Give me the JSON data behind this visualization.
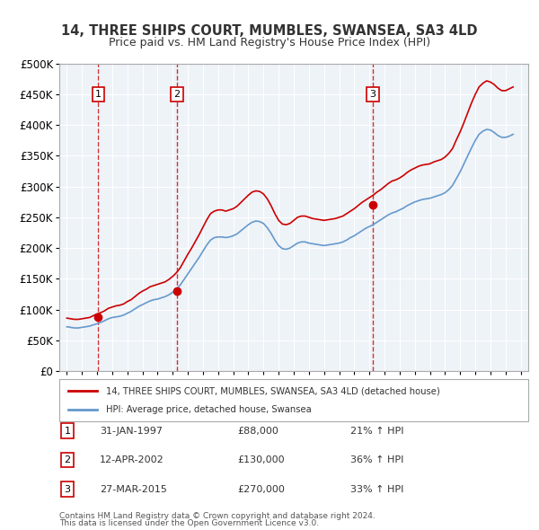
{
  "title": "14, THREE SHIPS COURT, MUMBLES, SWANSEA, SA3 4LD",
  "subtitle": "Price paid vs. HM Land Registry's House Price Index (HPI)",
  "sales": [
    {
      "label": "1",
      "date_str": "31-JAN-1997",
      "year": 1997.08,
      "price": 88000
    },
    {
      "label": "2",
      "date_str": "12-APR-2002",
      "year": 2002.28,
      "price": 130000
    },
    {
      "label": "3",
      "date_str": "27-MAR-2015",
      "year": 2015.23,
      "price": 270000
    }
  ],
  "sale_pct": [
    "21% ↑ HPI",
    "36% ↑ HPI",
    "33% ↑ HPI"
  ],
  "legend_property": "14, THREE SHIPS COURT, MUMBLES, SWANSEA, SA3 4LD (detached house)",
  "legend_hpi": "HPI: Average price, detached house, Swansea",
  "footnote1": "Contains HM Land Registry data © Crown copyright and database right 2024.",
  "footnote2": "This data is licensed under the Open Government Licence v3.0.",
  "property_color": "#cc0000",
  "hpi_color": "#6699cc",
  "vline_color": "#cc0000",
  "bg_color": "#dde8f0",
  "plot_bg": "#eef3f8",
  "ylim": [
    0,
    500000
  ],
  "xlim": [
    1994.5,
    2025.5
  ],
  "yticks": [
    0,
    50000,
    100000,
    150000,
    200000,
    250000,
    300000,
    350000,
    400000,
    450000,
    500000
  ],
  "ytick_labels": [
    "£0",
    "£50K",
    "£100K",
    "£150K",
    "£200K",
    "£250K",
    "£300K",
    "£350K",
    "£400K",
    "£450K",
    "£500K"
  ],
  "hpi_data": {
    "years": [
      1995.0,
      1995.25,
      1995.5,
      1995.75,
      1996.0,
      1996.25,
      1996.5,
      1996.75,
      1997.0,
      1997.25,
      1997.5,
      1997.75,
      1998.0,
      1998.25,
      1998.5,
      1998.75,
      1999.0,
      1999.25,
      1999.5,
      1999.75,
      2000.0,
      2000.25,
      2000.5,
      2000.75,
      2001.0,
      2001.25,
      2001.5,
      2001.75,
      2002.0,
      2002.25,
      2002.5,
      2002.75,
      2003.0,
      2003.25,
      2003.5,
      2003.75,
      2004.0,
      2004.25,
      2004.5,
      2004.75,
      2005.0,
      2005.25,
      2005.5,
      2005.75,
      2006.0,
      2006.25,
      2006.5,
      2006.75,
      2007.0,
      2007.25,
      2007.5,
      2007.75,
      2008.0,
      2008.25,
      2008.5,
      2008.75,
      2009.0,
      2009.25,
      2009.5,
      2009.75,
      2010.0,
      2010.25,
      2010.5,
      2010.75,
      2011.0,
      2011.25,
      2011.5,
      2011.75,
      2012.0,
      2012.25,
      2012.5,
      2012.75,
      2013.0,
      2013.25,
      2013.5,
      2013.75,
      2014.0,
      2014.25,
      2014.5,
      2014.75,
      2015.0,
      2015.25,
      2015.5,
      2015.75,
      2016.0,
      2016.25,
      2016.5,
      2016.75,
      2017.0,
      2017.25,
      2017.5,
      2017.75,
      2018.0,
      2018.25,
      2018.5,
      2018.75,
      2019.0,
      2019.25,
      2019.5,
      2019.75,
      2020.0,
      2020.25,
      2020.5,
      2020.75,
      2021.0,
      2021.25,
      2021.5,
      2021.75,
      2022.0,
      2022.25,
      2022.5,
      2022.75,
      2023.0,
      2023.25,
      2023.5,
      2023.75,
      2024.0,
      2024.25,
      2024.5
    ],
    "values": [
      72000,
      71000,
      70000,
      70000,
      71000,
      72000,
      73000,
      75000,
      77000,
      79000,
      82000,
      85000,
      87000,
      88000,
      89000,
      91000,
      94000,
      97000,
      101000,
      105000,
      108000,
      111000,
      114000,
      116000,
      117000,
      119000,
      121000,
      124000,
      128000,
      133000,
      140000,
      149000,
      158000,
      167000,
      176000,
      185000,
      195000,
      205000,
      213000,
      217000,
      218000,
      218000,
      217000,
      218000,
      220000,
      223000,
      228000,
      233000,
      238000,
      242000,
      244000,
      243000,
      240000,
      233000,
      224000,
      213000,
      204000,
      199000,
      198000,
      200000,
      204000,
      208000,
      210000,
      210000,
      208000,
      207000,
      206000,
      205000,
      204000,
      205000,
      206000,
      207000,
      208000,
      210000,
      213000,
      217000,
      220000,
      224000,
      228000,
      232000,
      235000,
      238000,
      242000,
      246000,
      250000,
      254000,
      257000,
      259000,
      262000,
      265000,
      269000,
      272000,
      275000,
      277000,
      279000,
      280000,
      281000,
      283000,
      285000,
      287000,
      290000,
      295000,
      302000,
      313000,
      324000,
      337000,
      350000,
      363000,
      375000,
      385000,
      390000,
      393000,
      392000,
      388000,
      383000,
      380000,
      380000,
      382000,
      385000
    ]
  },
  "property_data": {
    "years": [
      1995.0,
      1995.25,
      1995.5,
      1995.75,
      1996.0,
      1996.25,
      1996.5,
      1996.75,
      1997.0,
      1997.25,
      1997.5,
      1997.75,
      1998.0,
      1998.25,
      1998.5,
      1998.75,
      1999.0,
      1999.25,
      1999.5,
      1999.75,
      2000.0,
      2000.25,
      2000.5,
      2000.75,
      2001.0,
      2001.25,
      2001.5,
      2001.75,
      2002.0,
      2002.25,
      2002.5,
      2002.75,
      2003.0,
      2003.25,
      2003.5,
      2003.75,
      2004.0,
      2004.25,
      2004.5,
      2004.75,
      2005.0,
      2005.25,
      2005.5,
      2005.75,
      2006.0,
      2006.25,
      2006.5,
      2006.75,
      2007.0,
      2007.25,
      2007.5,
      2007.75,
      2008.0,
      2008.25,
      2008.5,
      2008.75,
      2009.0,
      2009.25,
      2009.5,
      2009.75,
      2010.0,
      2010.25,
      2010.5,
      2010.75,
      2011.0,
      2011.25,
      2011.5,
      2011.75,
      2012.0,
      2012.25,
      2012.5,
      2012.75,
      2013.0,
      2013.25,
      2013.5,
      2013.75,
      2014.0,
      2014.25,
      2014.5,
      2014.75,
      2015.0,
      2015.25,
      2015.5,
      2015.75,
      2016.0,
      2016.25,
      2016.5,
      2016.75,
      2017.0,
      2017.25,
      2017.5,
      2017.75,
      2018.0,
      2018.25,
      2018.5,
      2018.75,
      2019.0,
      2019.25,
      2019.5,
      2019.75,
      2020.0,
      2020.25,
      2020.5,
      2020.75,
      2021.0,
      2021.25,
      2021.5,
      2021.75,
      2022.0,
      2022.25,
      2022.5,
      2022.75,
      2023.0,
      2023.25,
      2023.5,
      2023.75,
      2024.0,
      2024.25,
      2024.5
    ],
    "values": [
      86000,
      85000,
      84000,
      84000,
      85000,
      86000,
      87000,
      90000,
      93000,
      95000,
      98000,
      102000,
      104000,
      106000,
      107000,
      109000,
      113000,
      116000,
      121000,
      126000,
      130000,
      133000,
      137000,
      139000,
      141000,
      143000,
      145000,
      149000,
      154000,
      160000,
      168000,
      179000,
      190000,
      200000,
      211000,
      222000,
      234000,
      246000,
      256000,
      260000,
      262000,
      262000,
      260000,
      262000,
      264000,
      268000,
      274000,
      280000,
      286000,
      291000,
      293000,
      292000,
      288000,
      280000,
      269000,
      256000,
      245000,
      239000,
      238000,
      240000,
      245000,
      250000,
      252000,
      252000,
      250000,
      248000,
      247000,
      246000,
      245000,
      246000,
      247000,
      248000,
      250000,
      252000,
      256000,
      260000,
      264000,
      269000,
      274000,
      278000,
      282000,
      286000,
      291000,
      295000,
      300000,
      305000,
      309000,
      311000,
      314000,
      318000,
      323000,
      327000,
      330000,
      333000,
      335000,
      336000,
      337000,
      340000,
      342000,
      344000,
      348000,
      354000,
      362000,
      376000,
      389000,
      404000,
      420000,
      436000,
      450000,
      462000,
      468000,
      472000,
      470000,
      466000,
      460000,
      456000,
      456000,
      459000,
      462000
    ]
  }
}
